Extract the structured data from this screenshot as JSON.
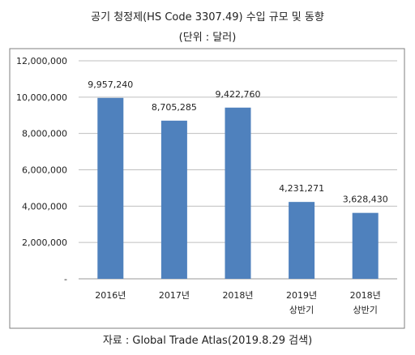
{
  "chart_data": {
    "type": "bar",
    "title": "공기 청정제(HS Code 3307.49) 수입 규모 및 동향",
    "subtitle": "(단위 : 달러)",
    "source": "자료 : Global Trade Atlas(2019.8.29 검색)",
    "categories": [
      [
        "2016년"
      ],
      [
        "2017년"
      ],
      [
        "2018년"
      ],
      [
        "2019년",
        "상반기"
      ],
      [
        "2018년",
        "상반기"
      ]
    ],
    "values": [
      9957240,
      8705285,
      9422760,
      4231271,
      3628430
    ],
    "data_labels": [
      "9,957,240",
      "8,705,285",
      "9,422,760",
      "4,231,271",
      "3,628,430"
    ],
    "ylim": [
      0,
      12000000
    ],
    "yticks": [
      {
        "value": 0,
        "label": "-"
      },
      {
        "value": 2000000,
        "label": "2,000,000"
      },
      {
        "value": 4000000,
        "label": "4,000,000"
      },
      {
        "value": 6000000,
        "label": "6,000,000"
      },
      {
        "value": 8000000,
        "label": "8,000,000"
      },
      {
        "value": 10000000,
        "label": "10,000,000"
      },
      {
        "value": 12000000,
        "label": "12,000,000"
      }
    ],
    "grid": true,
    "colors": {
      "bar": "#4f81bd",
      "grid": "#bfbfbf",
      "frame": "#7f7f7f"
    }
  }
}
